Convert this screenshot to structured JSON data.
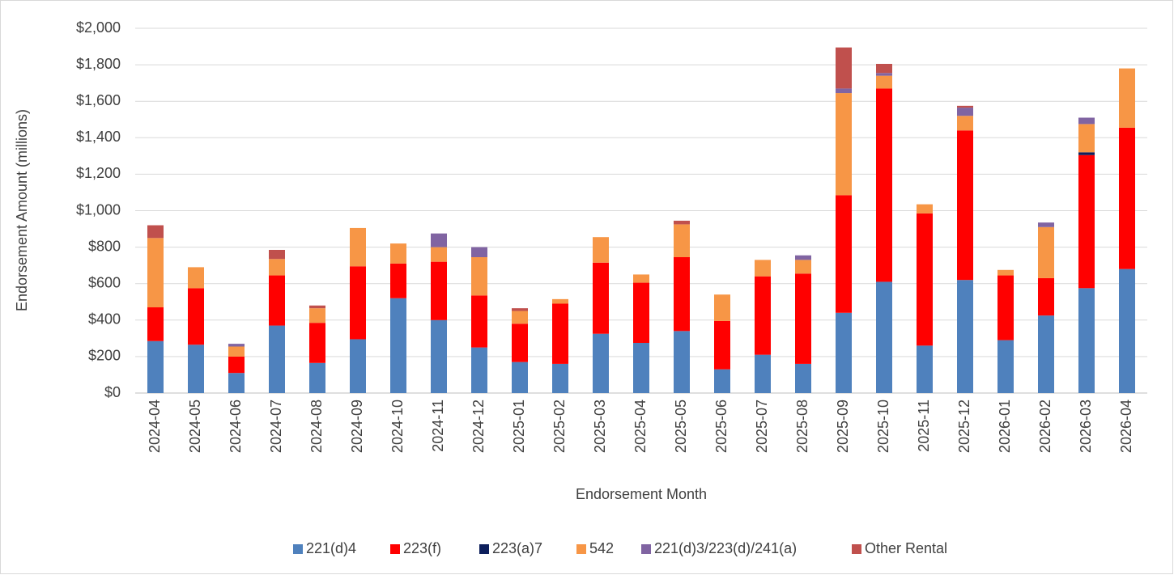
{
  "chart_data": {
    "type": "stacked_bar",
    "x_label": "Endorsement Month",
    "y_label": "Endorsement Amount (millions)",
    "categories": [
      "2024-04",
      "2024-05",
      "2024-06",
      "2024-07",
      "2024-08",
      "2024-09",
      "2024-10",
      "2024-11",
      "2024-12",
      "2025-01",
      "2025-02",
      "2025-03",
      "2025-04",
      "2025-05",
      "2025-06",
      "2025-07",
      "2025-08",
      "2025-09",
      "2025-10",
      "2025-11",
      "2025-12",
      "2026-01",
      "2026-02",
      "2026-03",
      "2026-04"
    ],
    "series": [
      {
        "name": "221(d)4",
        "color": "#4f81bd",
        "values": [
          285,
          265,
          110,
          370,
          165,
          295,
          520,
          400,
          250,
          170,
          160,
          325,
          275,
          340,
          130,
          210,
          160,
          440,
          610,
          260,
          620,
          290,
          425,
          575,
          680
        ]
      },
      {
        "name": "223(f)",
        "color": "#ff0000",
        "values": [
          185,
          310,
          90,
          275,
          220,
          400,
          190,
          320,
          285,
          210,
          330,
          390,
          330,
          405,
          265,
          430,
          495,
          645,
          1060,
          725,
          820,
          355,
          205,
          730,
          775
        ]
      },
      {
        "name": "223(a)7",
        "color": "#0d1f5c",
        "values": [
          0,
          0,
          0,
          0,
          0,
          0,
          0,
          0,
          0,
          0,
          0,
          0,
          0,
          0,
          0,
          0,
          0,
          0,
          0,
          0,
          0,
          0,
          0,
          15,
          0
        ]
      },
      {
        "name": "542",
        "color": "#f79646",
        "values": [
          380,
          115,
          55,
          90,
          80,
          210,
          110,
          80,
          210,
          70,
          25,
          140,
          45,
          180,
          145,
          90,
          75,
          560,
          70,
          50,
          80,
          30,
          280,
          155,
          325
        ]
      },
      {
        "name": "221(d)3/223(d)/241(a)",
        "color": "#8064a2",
        "values": [
          0,
          0,
          15,
          0,
          0,
          0,
          0,
          75,
          55,
          0,
          0,
          0,
          0,
          0,
          0,
          0,
          25,
          25,
          15,
          0,
          45,
          0,
          25,
          35,
          0
        ]
      },
      {
        "name": "Other Rental",
        "color": "#c0504d",
        "values": [
          70,
          0,
          0,
          50,
          15,
          0,
          0,
          0,
          0,
          15,
          0,
          0,
          0,
          20,
          0,
          0,
          0,
          225,
          50,
          0,
          10,
          0,
          0,
          0,
          0
        ]
      }
    ],
    "ylim": [
      0,
      2000
    ],
    "yticks": [
      {
        "value": 0,
        "label": "$0"
      },
      {
        "value": 200,
        "label": "$200"
      },
      {
        "value": 400,
        "label": "$400"
      },
      {
        "value": 600,
        "label": "$600"
      },
      {
        "value": 800,
        "label": "$800"
      },
      {
        "value": 1000,
        "label": "$1,000"
      },
      {
        "value": 1200,
        "label": "$1,200"
      },
      {
        "value": 1400,
        "label": "$1,400"
      },
      {
        "value": 1600,
        "label": "$1,600"
      },
      {
        "value": 1800,
        "label": "$1,800"
      },
      {
        "value": 2000,
        "label": "$2,000"
      }
    ],
    "grid": true,
    "legend": "bottom"
  }
}
